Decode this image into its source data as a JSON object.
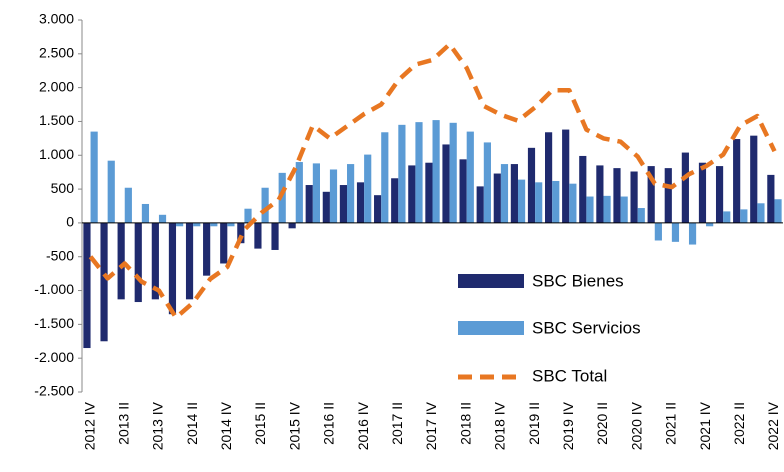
{
  "chart_data": {
    "type": "bar",
    "categories": [
      "2012 IV",
      null,
      "2013 II",
      null,
      "2013 IV",
      null,
      "2014 II",
      null,
      "2014 IV",
      null,
      "2015 II",
      null,
      "2015 IV",
      null,
      "2016 II",
      null,
      "2016 IV",
      null,
      "2017 II",
      null,
      "2017 IV",
      null,
      "2018 II",
      null,
      "2018 IV",
      null,
      "2019 II",
      null,
      "2019 IV",
      null,
      "2020 II",
      null,
      "2020 IV",
      null,
      "2021 II",
      null,
      "2021 IV",
      null,
      "2022 II",
      null,
      "2022 IV"
    ],
    "series": [
      {
        "name": "SBC Bienes",
        "color": "#1f2a6e",
        "values": [
          -1850,
          -1750,
          -1130,
          -1170,
          -1130,
          -1350,
          -1130,
          -780,
          -600,
          -300,
          -380,
          -400,
          -80,
          560,
          460,
          560,
          600,
          410,
          660,
          850,
          890,
          1160,
          940,
          540,
          730,
          870,
          1110,
          1340,
          1380,
          990,
          850,
          810,
          760,
          840,
          810,
          1040,
          890,
          840,
          1240,
          1290,
          710
        ]
      },
      {
        "name": "SBC Servicios",
        "color": "#5b9bd5",
        "values": [
          1350,
          920,
          520,
          280,
          120,
          -50,
          -50,
          -50,
          -50,
          210,
          520,
          740,
          900,
          880,
          790,
          870,
          1010,
          1340,
          1450,
          1490,
          1520,
          1480,
          1350,
          1190,
          870,
          640,
          600,
          620,
          580,
          390,
          400,
          390,
          220,
          -260,
          -280,
          -320,
          -50,
          170,
          200,
          290,
          350
        ]
      },
      {
        "name": "SBC Total",
        "color": "#e87722",
        "type": "line",
        "values": [
          -500,
          -820,
          -600,
          -870,
          -1000,
          -1400,
          -1180,
          -830,
          -650,
          -100,
          150,
          340,
          820,
          1440,
          1250,
          1430,
          1610,
          1750,
          2110,
          2340,
          2410,
          2640,
          2290,
          1730,
          1600,
          1510,
          1710,
          1960,
          1960,
          1380,
          1250,
          1200,
          980,
          580,
          530,
          720,
          840,
          1010,
          1440,
          1580,
          1060
        ]
      }
    ],
    "ylim": [
      -2500,
      3000
    ],
    "yticks": [
      {
        "value": -2500,
        "label": "-2.500"
      },
      {
        "value": -2000,
        "label": "-2.000"
      },
      {
        "value": -1500,
        "label": "-1.500"
      },
      {
        "value": -1000,
        "label": "-1.000"
      },
      -500,
      0,
      500,
      {
        "value": 1000,
        "label": "1.000"
      },
      {
        "value": 1500,
        "label": "1.500"
      },
      {
        "value": 2000,
        "label": "2.000"
      },
      {
        "value": 2500,
        "label": "2.500"
      },
      {
        "value": 3000,
        "label": "3.000"
      }
    ],
    "legend": "lower right"
  }
}
